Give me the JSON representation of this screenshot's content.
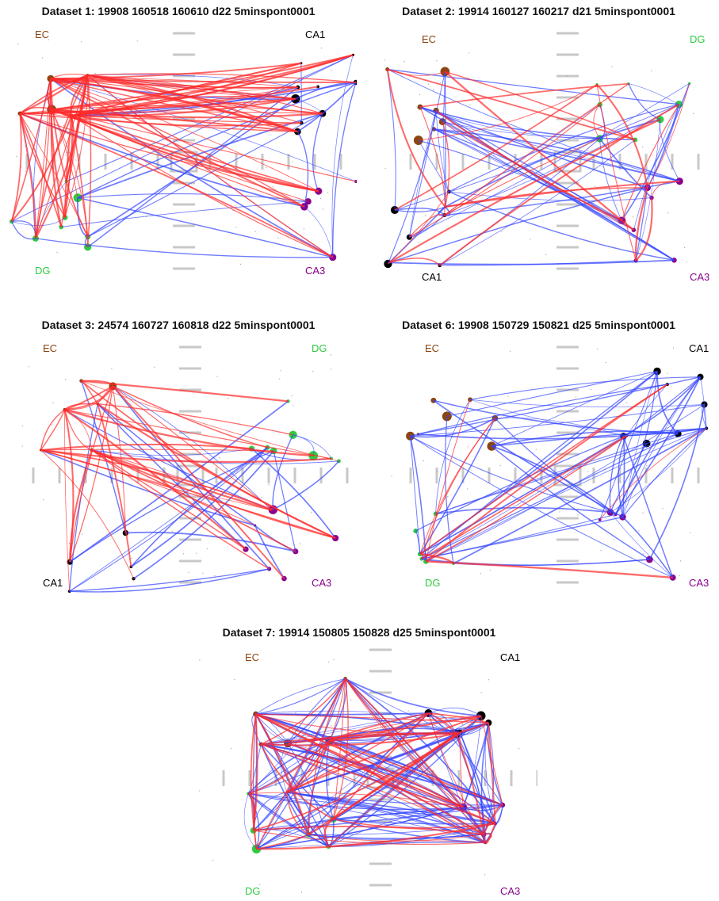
{
  "colors": {
    "EC": "#8B4513",
    "DG": "#2ECC40",
    "CA1": "#000000",
    "CA3": "#8B008B",
    "excitatory_edge": "#FF2A2A",
    "inhibitory_edge": "#3344FF",
    "scaffold": "#C8C8C8"
  },
  "panels": [
    {
      "title": "Dataset 1: 19908 160518 160610 d22 5minspont0001",
      "labels": {
        "tl": "EC",
        "tr": "CA1",
        "bl": "DG",
        "br": "CA3"
      }
    },
    {
      "title": "Dataset 2: 19914 160127 160217 d21 5minspont0001",
      "labels": {
        "tl": "EC",
        "tr": "DG",
        "bl": "CA1",
        "br": "CA3"
      }
    },
    {
      "title": "Dataset 3: 24574 160727 160818 d22 5minspont0001",
      "labels": {
        "tl": "EC",
        "tr": "DG",
        "bl": "CA1",
        "br": "CA3"
      }
    },
    {
      "title": "Dataset 6: 19908 150729 150821 d25 5minspont0001",
      "labels": {
        "tl": "EC",
        "tr": "CA1",
        "bl": "DG",
        "br": "CA3"
      }
    },
    {
      "title": "Dataset 7: 19914 150805 150828 d25 5minspont0001",
      "labels": {
        "tl": "EC",
        "tr": "CA1",
        "bl": "DG",
        "br": "CA3"
      }
    }
  ]
}
